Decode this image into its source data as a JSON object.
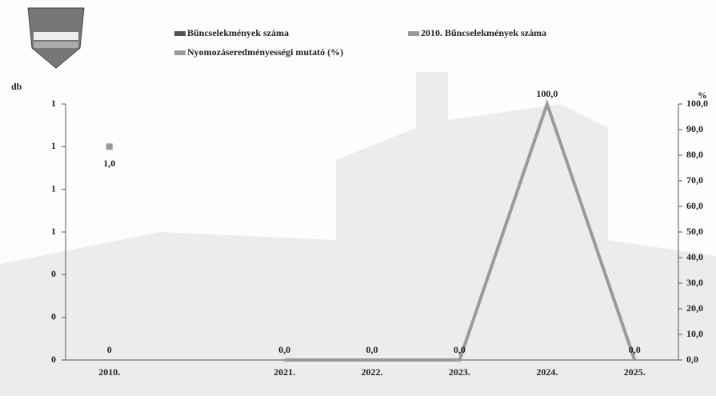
{
  "chart_data": {
    "type": "combo",
    "y_label": "db",
    "y2_label": "%",
    "categories": [
      "2010.",
      null,
      "2021.",
      "2022.",
      "2023.",
      "2024.",
      "2025."
    ],
    "ylim": [
      0,
      1.2
    ],
    "yticks": [
      {
        "value": 0,
        "label": "0"
      },
      {
        "value": 0.2,
        "label": "0"
      },
      {
        "value": 0.4,
        "label": "0"
      },
      {
        "value": 0.6,
        "label": "1"
      },
      {
        "value": 0.8,
        "label": "1"
      },
      {
        "value": 1.0,
        "label": "1"
      },
      {
        "value": 1.2,
        "label": "1"
      }
    ],
    "y2lim": [
      0,
      100
    ],
    "y2ticks": [
      {
        "value": 0,
        "label": "0,0"
      },
      {
        "value": 10,
        "label": "10,0"
      },
      {
        "value": 20,
        "label": "20,0"
      },
      {
        "value": 30,
        "label": "30,0"
      },
      {
        "value": 40,
        "label": "40,0"
      },
      {
        "value": 50,
        "label": "50,0"
      },
      {
        "value": 60,
        "label": "60,0"
      },
      {
        "value": 70,
        "label": "70,0"
      },
      {
        "value": 80,
        "label": "80,0"
      },
      {
        "value": 90,
        "label": "90,0"
      },
      {
        "value": 100,
        "label": "100,0"
      }
    ],
    "series": [
      {
        "name": "Bűncselekmények száma",
        "kind": "bar",
        "color": "#555555",
        "values": [
          0,
          null,
          null,
          null,
          null,
          null,
          null
        ]
      },
      {
        "name": "2010. Bűncselekmények száma",
        "kind": "point",
        "color": "#999999",
        "values": [
          1.0,
          null,
          null,
          null,
          null,
          null,
          null
        ],
        "value_labels": [
          "1,0",
          null,
          null,
          null,
          null,
          null,
          null
        ]
      },
      {
        "name": "Nyomozáseredményességi mutató (%)",
        "kind": "line",
        "axis": "y2",
        "color": "#9a9a9a",
        "values": [
          null,
          null,
          0,
          0,
          0,
          100,
          0
        ],
        "value_labels": [
          null,
          null,
          "0,0",
          "0,0",
          "0,0",
          "100,0",
          "0,0"
        ]
      }
    ]
  }
}
